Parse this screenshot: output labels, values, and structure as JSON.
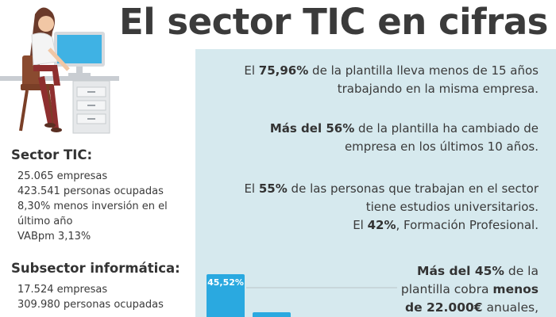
{
  "title": "El sector TIC en cifras",
  "sector_tic": {
    "title": "Sector TIC:",
    "items": [
      "25.065 empresas",
      "423.541 personas ocupadas",
      "8,30% menos inversión en el",
      "último año",
      "VABpm 3,13%"
    ]
  },
  "subsector": {
    "title": "Subsector informática:",
    "items": [
      "17.524 empresas",
      "309.980 personas ocupadas"
    ]
  },
  "stats": {
    "s1": {
      "a": "El ",
      "b": "75,96%",
      "c": " de la plantilla lleva menos de 15 años",
      "line2": "trabajando en la misma empresa."
    },
    "s2": {
      "b": "Más del 56%",
      "c": " de la plantilla ha cambiado de",
      "line2": "empresa en los últimos 10 años."
    },
    "s3": {
      "line1": "El ",
      "b1": "55%",
      "line1b": " de las personas que trabajan en el sector",
      "line2": "tiene estudios universitarios.",
      "line3a": "El ",
      "b2": "42%",
      "line3b": ", Formación Profesional."
    },
    "s4": {
      "b1": "Más del 45%",
      "c1": " de la",
      "line2a": "plantilla cobra ",
      "b2": "menos",
      "b3": "de 22.000€",
      "c3": " anuales,"
    }
  },
  "chart_data": {
    "type": "bar",
    "categories": [
      "",
      ""
    ],
    "values": [
      45.52,
      null
    ],
    "labels": [
      "45,52%",
      ""
    ],
    "colors": [
      "#2aa9e0",
      "#2aa9e0"
    ]
  },
  "colors": {
    "panel": "#d6e9ee",
    "bar": "#2aa9e0",
    "text": "#3a3a3a"
  }
}
